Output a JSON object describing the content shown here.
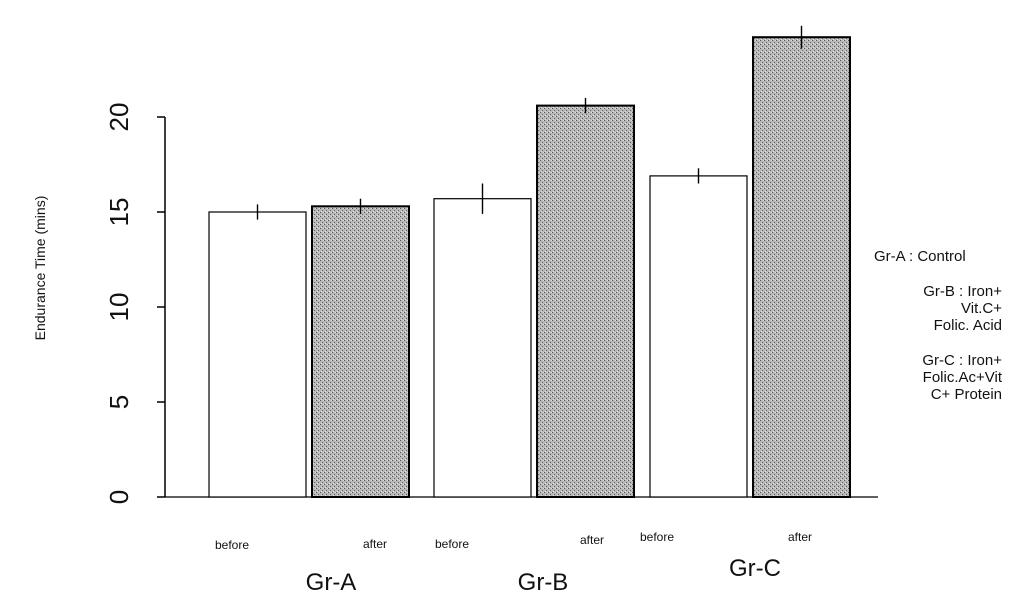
{
  "chart_data": {
    "type": "bar",
    "ylabel": "Endurance Time (mins)",
    "xlabel": "",
    "ylim": [
      0,
      25
    ],
    "yticks": [
      0,
      5,
      10,
      15,
      20
    ],
    "grid": false,
    "groups": [
      {
        "name": "Gr-A",
        "bars": [
          {
            "label": "before",
            "value": 15.0,
            "error": 0.4,
            "fill": "white"
          },
          {
            "label": "after",
            "value": 15.3,
            "error": 0.4,
            "fill": "stippled"
          }
        ]
      },
      {
        "name": "Gr-B",
        "bars": [
          {
            "label": "before",
            "value": 15.7,
            "error": 0.8,
            "fill": "white"
          },
          {
            "label": "after",
            "value": 20.6,
            "error": 0.4,
            "fill": "stippled"
          }
        ]
      },
      {
        "name": "Gr-C",
        "bars": [
          {
            "label": "before",
            "value": 16.9,
            "error": 0.4,
            "fill": "white"
          },
          {
            "label": "after",
            "value": 24.2,
            "error": 0.6,
            "fill": "stippled"
          }
        ]
      }
    ],
    "legend": {
      "placement": "right",
      "entries": [
        "Gr-A : Control",
        "Gr-B : Iron+\nVit.C+\nFolic. Acid",
        "Gr-C : Iron+\nFolic.Ac+Vit\nC+ Protein"
      ]
    },
    "colors": {
      "before_fill": "#ffffff",
      "after_fill": "#b3b3b3",
      "stroke": "#000000"
    }
  }
}
